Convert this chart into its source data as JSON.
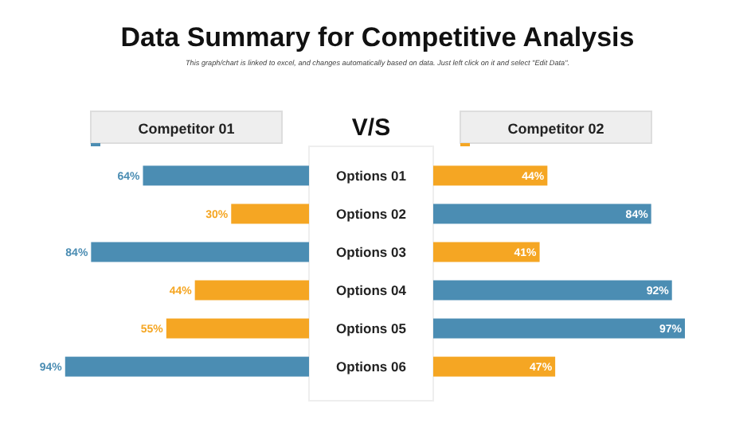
{
  "chart_data": [
    {
      "type": "bar",
      "orientation": "horizontal",
      "title": "Data Summary for Competitive Analysis",
      "subtitle": "This graph/chart is linked to excel, and changes automatically based on data. Just left click on it and select \"Edit Data\".",
      "annotations": [
        "V/S"
      ],
      "categories": [
        "Options 01",
        "Options 02",
        "Options 03",
        "Options 04",
        "Options 05",
        "Options 06"
      ],
      "legend": "top",
      "series": [
        {
          "name": "Competitor 01",
          "values": [
            64,
            30,
            84,
            44,
            55,
            94
          ],
          "value_labels": [
            "64%",
            "30%",
            "84%",
            "44%",
            "55%",
            "94%"
          ],
          "colors": [
            "#4b8db3",
            "#f5a623",
            "#4b8db3",
            "#f5a623",
            "#f5a623",
            "#4b8db3"
          ]
        }
      ]
    },
    {
      "type": "bar",
      "orientation": "horizontal",
      "categories": [
        null,
        null,
        null,
        null,
        null,
        null
      ],
      "legend": "top",
      "series": [
        {
          "name": "Competitor 02",
          "values": [
            44,
            84,
            41,
            92,
            97,
            47
          ],
          "value_labels": [
            "44%",
            "84%",
            "41%",
            "92%",
            "97%",
            "47%"
          ],
          "colors": [
            "#f5a623",
            "#4b8db3",
            "#f5a623",
            "#4b8db3",
            "#4b8db3",
            "#f5a623"
          ]
        }
      ]
    }
  ]
}
